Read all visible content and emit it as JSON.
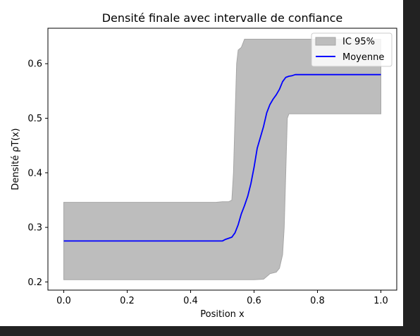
{
  "chart_data": {
    "type": "line",
    "title": "Densité finale avec intervalle de confiance",
    "xlabel": "Position x",
    "ylabel": "Densité ρT(x)",
    "xlim": [
      -0.05,
      1.05
    ],
    "ylim": [
      0.185,
      0.665
    ],
    "xticks": [
      0.0,
      0.2,
      0.4,
      0.6,
      0.8,
      1.0
    ],
    "xtick_labels": [
      "0.0",
      "0.2",
      "0.4",
      "0.6",
      "0.8",
      "1.0"
    ],
    "yticks": [
      0.2,
      0.3,
      0.4,
      0.5,
      0.6
    ],
    "ytick_labels": [
      "0.2",
      "0.3",
      "0.4",
      "0.5",
      "0.6"
    ],
    "grid": false,
    "legend_position": "upper right",
    "colors": {
      "band": "#bdbdbd",
      "band_edge": "#a6a6a6",
      "mean": "#0000ff"
    },
    "series": [
      {
        "name": "IC 95%",
        "kind": "band",
        "x": [
          0.0,
          0.48,
          0.5,
          0.52,
          0.53,
          0.535,
          0.54,
          0.545,
          0.55,
          0.56,
          0.57,
          0.7,
          0.75,
          1.0
        ],
        "upper": [
          0.346,
          0.346,
          0.347,
          0.347,
          0.35,
          0.4,
          0.5,
          0.6,
          0.625,
          0.63,
          0.645,
          0.645,
          0.645,
          0.645
        ],
        "lower_x": [
          0.0,
          0.6,
          0.63,
          0.64,
          0.65,
          0.67,
          0.68,
          0.69,
          0.695,
          0.7,
          0.705,
          0.71,
          0.72,
          1.0
        ],
        "lower": [
          0.204,
          0.204,
          0.205,
          0.21,
          0.215,
          0.218,
          0.225,
          0.25,
          0.3,
          0.4,
          0.5,
          0.508,
          0.508,
          0.508
        ]
      },
      {
        "name": "Moyenne",
        "kind": "line",
        "x": [
          0.0,
          0.5,
          0.51,
          0.53,
          0.54,
          0.55,
          0.56,
          0.57,
          0.58,
          0.59,
          0.6,
          0.61,
          0.62,
          0.63,
          0.64,
          0.65,
          0.66,
          0.67,
          0.68,
          0.69,
          0.7,
          0.71,
          0.72,
          0.73,
          0.75,
          1.0
        ],
        "y": [
          0.275,
          0.275,
          0.278,
          0.282,
          0.29,
          0.305,
          0.325,
          0.34,
          0.357,
          0.38,
          0.41,
          0.445,
          0.465,
          0.485,
          0.51,
          0.525,
          0.535,
          0.543,
          0.553,
          0.567,
          0.575,
          0.577,
          0.578,
          0.58,
          0.58,
          0.58
        ]
      }
    ]
  }
}
